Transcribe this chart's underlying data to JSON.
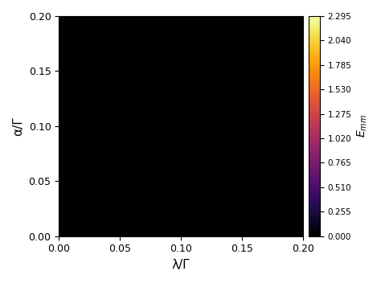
{
  "xmin": 0.0,
  "xmax": 0.2,
  "ymin": 0.0,
  "ymax": 0.2,
  "xlabel": "λ/Γ",
  "ylabel": "α/Γ",
  "cbar_label": "$E_{mm}$",
  "cbar_ticks": [
    0.0,
    0.255,
    0.51,
    0.765,
    1.02,
    1.275,
    1.53,
    1.785,
    2.04,
    2.295
  ],
  "vmin": 0.0,
  "vmax": 2.295,
  "colormap": "inferno",
  "xticks": [
    0.0,
    0.05,
    0.1,
    0.15,
    0.2
  ],
  "yticks": [
    0.0,
    0.05,
    0.1,
    0.15,
    0.2
  ],
  "n_grid": 600,
  "contour_levels": 100,
  "figsize": [
    4.74,
    3.52
  ],
  "dpi": 100
}
